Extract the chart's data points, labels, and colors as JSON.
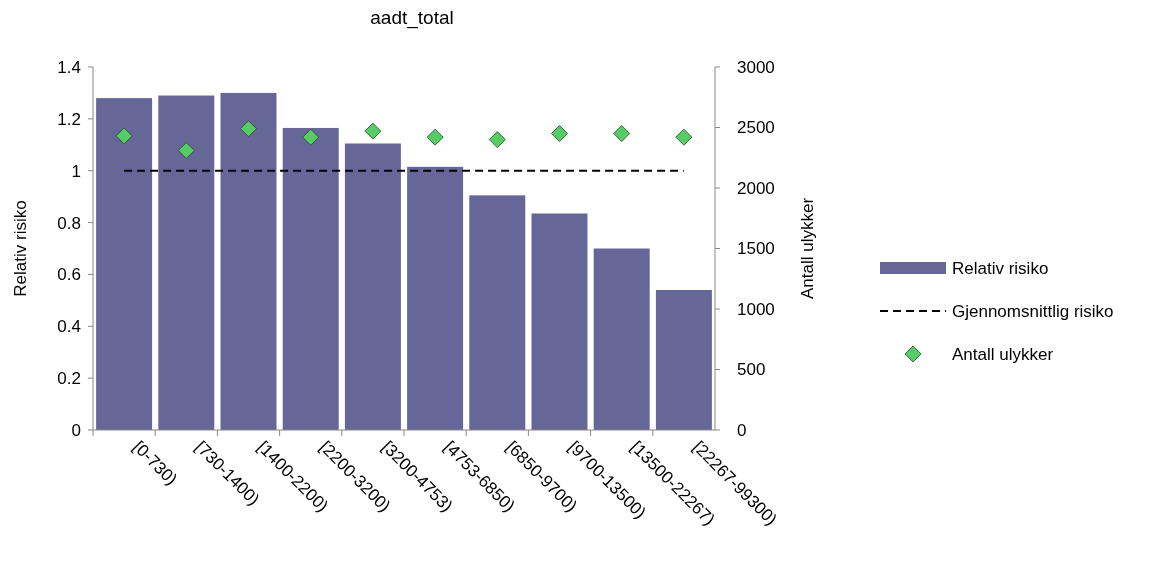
{
  "chart_data": {
    "type": "bar",
    "title": "aadt_total",
    "ylabel": "Relativ risiko",
    "y2label": "Antall ulykker",
    "categories": [
      "[0-730)",
      "[730-1400)",
      "[1400-2200)",
      "[2200-3200)",
      "[3200-4753)",
      "[4753-6850)",
      "[6850-9700)",
      "[9700-13500)",
      "[13500-22267)",
      "[22267-99300)"
    ],
    "series": [
      {
        "name": "Relativ risiko",
        "color": "#666699",
        "values": [
          1.28,
          1.29,
          1.3,
          1.165,
          1.105,
          1.015,
          0.905,
          0.835,
          0.7,
          0.54
        ]
      },
      {
        "name": "Gjennomsnittlig risiko",
        "type": "line",
        "color": "#000000",
        "line_style": "dashed",
        "marker": "none",
        "values": [
          1,
          1,
          1,
          1,
          1,
          1,
          1,
          1,
          1,
          1
        ]
      },
      {
        "name": "Antall ulykker",
        "type": "scatter",
        "axis": "y2",
        "color": "#55cc66",
        "marker": "diamond",
        "values": [
          2430,
          2310,
          2490,
          2420,
          2470,
          2420,
          2400,
          2450,
          2450,
          2420
        ]
      }
    ],
    "ylim": [
      0,
      1.4
    ],
    "yticks": [
      0,
      {
        "value": 0.2,
        "label": "0.2"
      },
      {
        "value": 0.4,
        "label": "0.4"
      },
      {
        "value": 0.6,
        "label": "0.6"
      },
      {
        "value": 0.8,
        "label": "0.8"
      },
      1,
      {
        "value": 1.2,
        "label": "1.2"
      },
      {
        "value": 1.4,
        "label": "1.4"
      }
    ],
    "y2lim": [
      0,
      3000
    ],
    "y2ticks": [
      0,
      500,
      1000,
      1500,
      2000,
      2500,
      3000
    ],
    "grid": false,
    "legend": "right"
  }
}
